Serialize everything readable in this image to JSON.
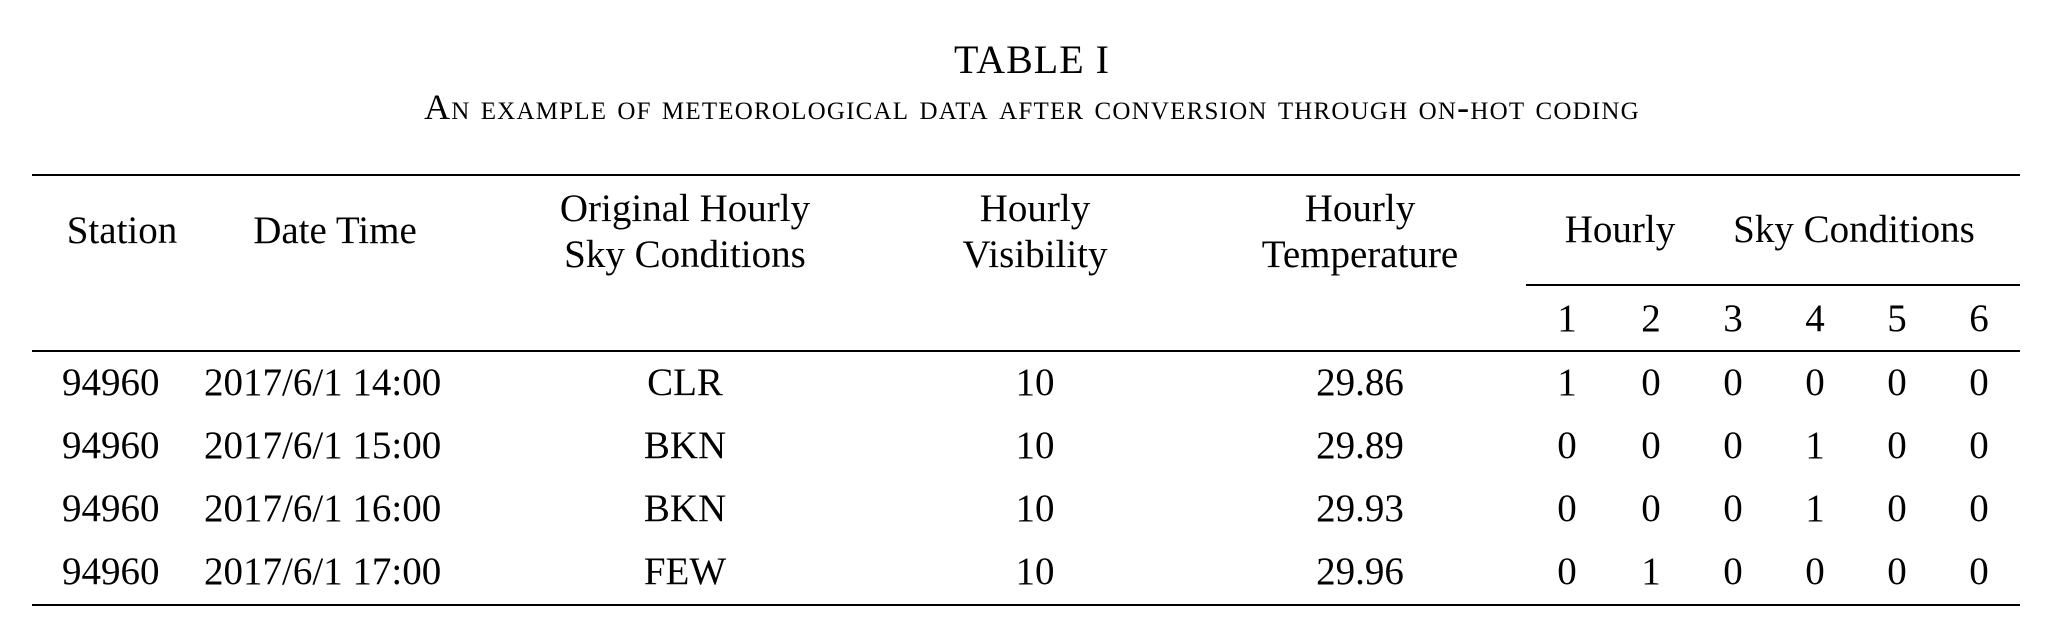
{
  "caption": {
    "number": "TABLE I",
    "text": "An example of meteorological data after conversion through on-hot coding"
  },
  "headers": {
    "station": "Station",
    "datetime": "Date Time",
    "original_sky_line1": "Original Hourly",
    "original_sky_line2": "Sky Conditions",
    "visibility_line1": "Hourly",
    "visibility_line2": "Visibility",
    "temperature_line1": "Hourly",
    "temperature_line2": "Temperature",
    "sky_group_1": "Hourly",
    "sky_group_2": "Sky Conditions",
    "sub_columns": [
      "1",
      "2",
      "3",
      "4",
      "5",
      "6"
    ]
  },
  "rows": [
    {
      "station": "94960",
      "datetime": "2017/6/1 14:00",
      "sky": "CLR",
      "visibility": "10",
      "temperature": "29.86",
      "onehot": [
        "1",
        "0",
        "0",
        "0",
        "0",
        "0"
      ]
    },
    {
      "station": "94960",
      "datetime": "2017/6/1 15:00",
      "sky": "BKN",
      "visibility": "10",
      "temperature": "29.89",
      "onehot": [
        "0",
        "0",
        "0",
        "1",
        "0",
        "0"
      ]
    },
    {
      "station": "94960",
      "datetime": "2017/6/1 16:00",
      "sky": "BKN",
      "visibility": "10",
      "temperature": "29.93",
      "onehot": [
        "0",
        "0",
        "0",
        "1",
        "0",
        "0"
      ]
    },
    {
      "station": "94960",
      "datetime": "2017/6/1 17:00",
      "sky": "FEW",
      "visibility": "10",
      "temperature": "29.96",
      "onehot": [
        "0",
        "1",
        "0",
        "0",
        "0",
        "0"
      ]
    }
  ]
}
